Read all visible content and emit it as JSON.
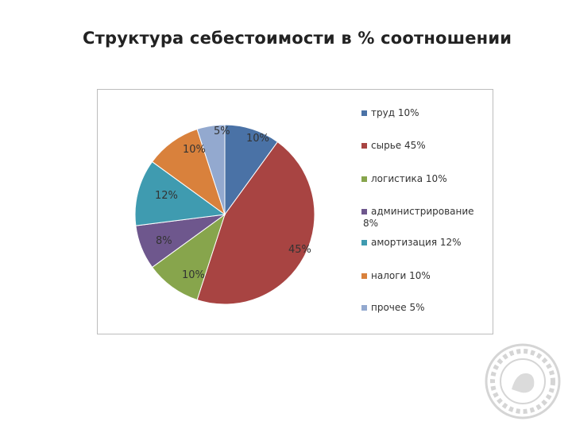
{
  "slide": {
    "title": "Структура себестоимости в % соотношении"
  },
  "chart_data": {
    "type": "pie",
    "start_angle_deg": 0,
    "direction": "clockwise",
    "slices": [
      {
        "value": 10,
        "label": "10%",
        "legend_lines": [
          "труд 10%"
        ],
        "color": "#4a72a6"
      },
      {
        "value": 45,
        "label": "45%",
        "legend_lines": [
          "сырье 45%"
        ],
        "color": "#a84442"
      },
      {
        "value": 10,
        "label": "10%",
        "legend_lines": [
          "логистика 10%"
        ],
        "color": "#87a54c"
      },
      {
        "value": 8,
        "label": "8%",
        "legend_lines": [
          "администрирование",
          "8%"
        ],
        "color": "#6e578d"
      },
      {
        "value": 12,
        "label": "12%",
        "legend_lines": [
          "амортизация 12%"
        ],
        "color": "#3f9bb0"
      },
      {
        "value": 10,
        "label": "10%",
        "legend_lines": [
          "налоги 10%"
        ],
        "color": "#d9813c"
      },
      {
        "value": 5,
        "label": "5%",
        "legend_lines": [
          "прочее 5%"
        ],
        "color": "#93a9cf"
      }
    ],
    "legend_position": "right"
  }
}
